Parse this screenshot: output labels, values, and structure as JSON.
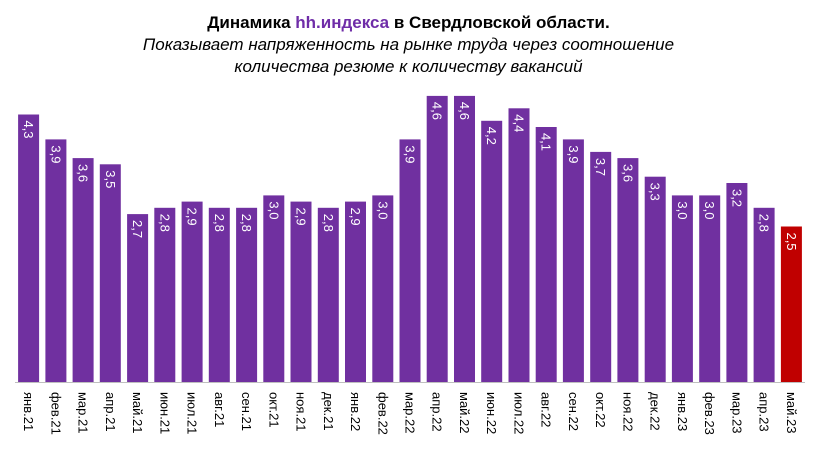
{
  "title": {
    "prefix": "Динамика ",
    "brand": "hh.индекса",
    "suffix": " в Свердловской области.",
    "subtitle_line1": "Показывает напряженность на рынке труда через соотношение",
    "subtitle_line2": "количества резюме к количеству вакансий"
  },
  "chart_data": {
    "type": "bar",
    "categories": [
      "янв.21",
      "фев.21",
      "мар.21",
      "апр.21",
      "май.21",
      "июн.21",
      "июл.21",
      "авг.21",
      "сен.21",
      "окт.21",
      "ноя.21",
      "дек.21",
      "янв.22",
      "фев.22",
      "мар.22",
      "апр.22",
      "май.22",
      "июн.22",
      "июл.22",
      "авг.22",
      "сен.22",
      "окт.22",
      "ноя.22",
      "дек.22",
      "янв.23",
      "фев.23",
      "мар.23",
      "апр.23",
      "май.23"
    ],
    "values": [
      4.3,
      3.9,
      3.6,
      3.5,
      2.7,
      2.8,
      2.9,
      2.8,
      2.8,
      3.0,
      2.9,
      2.8,
      2.9,
      3.0,
      3.9,
      4.6,
      4.6,
      4.2,
      4.4,
      4.1,
      3.9,
      3.7,
      3.6,
      3.3,
      3.0,
      3.0,
      3.2,
      2.8,
      2.5
    ],
    "labels": [
      "4,3",
      "3,9",
      "3,6",
      "3,5",
      "2,7",
      "2,8",
      "2,9",
      "2,8",
      "2,8",
      "3,0",
      "2,9",
      "2,8",
      "2,9",
      "3,0",
      "3,9",
      "4,6",
      "4,6",
      "4,2",
      "4,4",
      "4,1",
      "3,9",
      "3,7",
      "3,6",
      "3,3",
      "3,0",
      "3,0",
      "3,2",
      "2,8",
      "2,5"
    ],
    "highlight_index": 28,
    "colors": {
      "bar": "#7030a0",
      "highlight": "#c00000",
      "label": "#ffffff",
      "axis_text": "#000000"
    },
    "grid": false,
    "legend": "none"
  }
}
